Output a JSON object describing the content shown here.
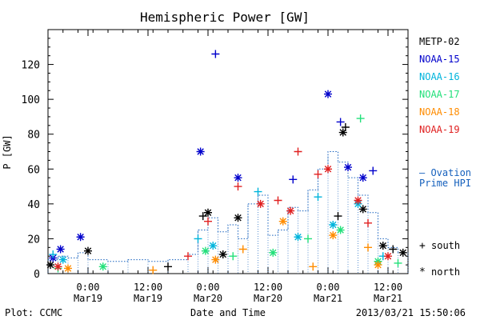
{
  "chart_data": {
    "type": "scatter",
    "title": "Hemispheric Power [GW]",
    "ylabel": "P [GW]",
    "xlabel": "Date and Time",
    "ylim": [
      0,
      140
    ],
    "yticks": [
      0,
      20,
      40,
      60,
      80,
      100,
      120
    ],
    "xlim": [
      "2013-03-18T16:00",
      "2013-03-21T16:00"
    ],
    "xticks": [
      {
        "t": "2013-03-19T00:00",
        "label_time": "0:00",
        "label_date": "Mar19"
      },
      {
        "t": "2013-03-19T12:00",
        "label_time": "12:00",
        "label_date": "Mar19"
      },
      {
        "t": "2013-03-20T00:00",
        "label_time": "0:00",
        "label_date": "Mar20"
      },
      {
        "t": "2013-03-20T12:00",
        "label_time": "12:00",
        "label_date": "Mar20"
      },
      {
        "t": "2013-03-21T00:00",
        "label_time": "0:00",
        "label_date": "Mar21"
      },
      {
        "t": "2013-03-21T12:00",
        "label_time": "12:00",
        "label_date": "Mar21"
      }
    ],
    "grid": false,
    "legend_position": "right",
    "footer_left": "Plot: CCMC",
    "footer_right": "2013/03/21 15:50:06",
    "marker_legend": {
      "plus": "south",
      "star": "north"
    },
    "series": [
      {
        "name": "METP-02",
        "color": "#000000",
        "points": [
          {
            "t": "2013-03-18T16:30",
            "v": 5,
            "m": "star"
          },
          {
            "t": "2013-03-19T00:00",
            "v": 13,
            "m": "star"
          },
          {
            "t": "2013-03-19T16:00",
            "v": 4,
            "m": "plus"
          },
          {
            "t": "2013-03-19T23:00",
            "v": 33,
            "m": "plus"
          },
          {
            "t": "2013-03-20T00:00",
            "v": 35,
            "m": "star"
          },
          {
            "t": "2013-03-20T06:00",
            "v": 32,
            "m": "star"
          },
          {
            "t": "2013-03-20T03:00",
            "v": 11,
            "m": "star"
          },
          {
            "t": "2013-03-21T02:00",
            "v": 33,
            "m": "plus"
          },
          {
            "t": "2013-03-21T03:00",
            "v": 81,
            "m": "star"
          },
          {
            "t": "2013-03-21T03:30",
            "v": 84,
            "m": "plus"
          },
          {
            "t": "2013-03-21T07:00",
            "v": 37,
            "m": "star"
          },
          {
            "t": "2013-03-21T11:00",
            "v": 16,
            "m": "star"
          },
          {
            "t": "2013-03-21T13:00",
            "v": 14,
            "m": "plus"
          },
          {
            "t": "2013-03-21T15:00",
            "v": 12,
            "m": "star"
          }
        ]
      },
      {
        "name": "NOAA-15",
        "color": "#0000cc",
        "points": [
          {
            "t": "2013-03-18T17:00",
            "v": 9,
            "m": "star"
          },
          {
            "t": "2013-03-18T18:30",
            "v": 14,
            "m": "star"
          },
          {
            "t": "2013-03-18T22:30",
            "v": 21,
            "m": "star"
          },
          {
            "t": "2013-03-19T22:30",
            "v": 70,
            "m": "star"
          },
          {
            "t": "2013-03-20T01:30",
            "v": 126,
            "m": "plus"
          },
          {
            "t": "2013-03-20T06:00",
            "v": 55,
            "m": "star"
          },
          {
            "t": "2013-03-20T17:00",
            "v": 54,
            "m": "plus"
          },
          {
            "t": "2013-03-21T00:00",
            "v": 103,
            "m": "star"
          },
          {
            "t": "2013-03-21T02:30",
            "v": 87,
            "m": "plus"
          },
          {
            "t": "2013-03-21T04:00",
            "v": 61,
            "m": "star"
          },
          {
            "t": "2013-03-21T07:00",
            "v": 55,
            "m": "star"
          },
          {
            "t": "2013-03-21T09:00",
            "v": 59,
            "m": "plus"
          }
        ]
      },
      {
        "name": "NOAA-16",
        "color": "#00b4dc",
        "points": [
          {
            "t": "2013-03-18T17:00",
            "v": 11,
            "m": "plus"
          },
          {
            "t": "2013-03-18T19:00",
            "v": 8,
            "m": "star"
          },
          {
            "t": "2013-03-19T22:00",
            "v": 20,
            "m": "plus"
          },
          {
            "t": "2013-03-20T01:00",
            "v": 16,
            "m": "star"
          },
          {
            "t": "2013-03-20T10:00",
            "v": 47,
            "m": "plus"
          },
          {
            "t": "2013-03-20T18:00",
            "v": 21,
            "m": "star"
          },
          {
            "t": "2013-03-20T22:00",
            "v": 44,
            "m": "plus"
          },
          {
            "t": "2013-03-21T01:00",
            "v": 28,
            "m": "star"
          },
          {
            "t": "2013-03-21T06:00",
            "v": 40,
            "m": "star"
          },
          {
            "t": "2013-03-21T11:00",
            "v": 10,
            "m": "plus"
          }
        ]
      },
      {
        "name": "NOAA-17",
        "color": "#22e07a",
        "points": [
          {
            "t": "2013-03-18T18:00",
            "v": 3,
            "m": "plus"
          },
          {
            "t": "2013-03-19T03:00",
            "v": 4,
            "m": "star"
          },
          {
            "t": "2013-03-19T23:30",
            "v": 13,
            "m": "star"
          },
          {
            "t": "2013-03-20T05:00",
            "v": 10,
            "m": "plus"
          },
          {
            "t": "2013-03-20T13:00",
            "v": 12,
            "m": "star"
          },
          {
            "t": "2013-03-20T20:00",
            "v": 20,
            "m": "plus"
          },
          {
            "t": "2013-03-21T02:30",
            "v": 25,
            "m": "star"
          },
          {
            "t": "2013-03-21T06:30",
            "v": 89,
            "m": "plus"
          },
          {
            "t": "2013-03-21T10:00",
            "v": 7,
            "m": "star"
          },
          {
            "t": "2013-03-21T14:00",
            "v": 6,
            "m": "plus"
          }
        ]
      },
      {
        "name": "NOAA-18",
        "color": "#ff8c00",
        "points": [
          {
            "t": "2013-03-18T20:00",
            "v": 3,
            "m": "star"
          },
          {
            "t": "2013-03-19T13:00",
            "v": 2,
            "m": "plus"
          },
          {
            "t": "2013-03-20T01:30",
            "v": 8,
            "m": "star"
          },
          {
            "t": "2013-03-20T07:00",
            "v": 14,
            "m": "plus"
          },
          {
            "t": "2013-03-20T15:00",
            "v": 30,
            "m": "star"
          },
          {
            "t": "2013-03-20T21:00",
            "v": 4,
            "m": "plus"
          },
          {
            "t": "2013-03-21T01:00",
            "v": 22,
            "m": "star"
          },
          {
            "t": "2013-03-21T08:00",
            "v": 15,
            "m": "plus"
          },
          {
            "t": "2013-03-21T10:00",
            "v": 5,
            "m": "star"
          }
        ]
      },
      {
        "name": "NOAA-19",
        "color": "#e02020",
        "points": [
          {
            "t": "2013-03-18T18:00",
            "v": 4,
            "m": "star"
          },
          {
            "t": "2013-03-19T20:00",
            "v": 10,
            "m": "plus"
          },
          {
            "t": "2013-03-20T00:00",
            "v": 30,
            "m": "plus"
          },
          {
            "t": "2013-03-20T06:00",
            "v": 50,
            "m": "plus"
          },
          {
            "t": "2013-03-20T10:30",
            "v": 40,
            "m": "star"
          },
          {
            "t": "2013-03-20T14:00",
            "v": 42,
            "m": "plus"
          },
          {
            "t": "2013-03-20T16:30",
            "v": 36,
            "m": "star"
          },
          {
            "t": "2013-03-20T18:00",
            "v": 70,
            "m": "plus"
          },
          {
            "t": "2013-03-20T22:00",
            "v": 57,
            "m": "plus"
          },
          {
            "t": "2013-03-21T00:00",
            "v": 60,
            "m": "star"
          },
          {
            "t": "2013-03-21T06:00",
            "v": 42,
            "m": "star"
          },
          {
            "t": "2013-03-21T08:00",
            "v": 29,
            "m": "plus"
          },
          {
            "t": "2013-03-21T12:00",
            "v": 10,
            "m": "star"
          }
        ]
      }
    ],
    "ovation": {
      "name_line1": "— Ovation",
      "name_line2": "Prime HPI",
      "color": "#1560bd",
      "steps": [
        {
          "t": "2013-03-18T16:00",
          "v": 8
        },
        {
          "t": "2013-03-18T18:00",
          "v": 10
        },
        {
          "t": "2013-03-18T20:00",
          "v": 9
        },
        {
          "t": "2013-03-18T22:00",
          "v": 12
        },
        {
          "t": "2013-03-19T00:00",
          "v": 8
        },
        {
          "t": "2013-03-19T04:00",
          "v": 7
        },
        {
          "t": "2013-03-19T08:00",
          "v": 8
        },
        {
          "t": "2013-03-19T12:00",
          "v": 7
        },
        {
          "t": "2013-03-19T16:00",
          "v": 8
        },
        {
          "t": "2013-03-19T20:00",
          "v": 11
        },
        {
          "t": "2013-03-19T22:00",
          "v": 25
        },
        {
          "t": "2013-03-20T00:00",
          "v": 32
        },
        {
          "t": "2013-03-20T02:00",
          "v": 24
        },
        {
          "t": "2013-03-20T04:00",
          "v": 28
        },
        {
          "t": "2013-03-20T06:00",
          "v": 20
        },
        {
          "t": "2013-03-20T08:00",
          "v": 40
        },
        {
          "t": "2013-03-20T10:00",
          "v": 45
        },
        {
          "t": "2013-03-20T12:00",
          "v": 22
        },
        {
          "t": "2013-03-20T14:00",
          "v": 25
        },
        {
          "t": "2013-03-20T16:00",
          "v": 38
        },
        {
          "t": "2013-03-20T18:00",
          "v": 36
        },
        {
          "t": "2013-03-20T20:00",
          "v": 48
        },
        {
          "t": "2013-03-20T22:00",
          "v": 60
        },
        {
          "t": "2013-03-21T00:00",
          "v": 70
        },
        {
          "t": "2013-03-21T02:00",
          "v": 64
        },
        {
          "t": "2013-03-21T04:00",
          "v": 55
        },
        {
          "t": "2013-03-21T06:00",
          "v": 45
        },
        {
          "t": "2013-03-21T08:00",
          "v": 35
        },
        {
          "t": "2013-03-21T10:00",
          "v": 20
        },
        {
          "t": "2013-03-21T12:00",
          "v": 15
        },
        {
          "t": "2013-03-21T14:00",
          "v": 12
        },
        {
          "t": "2013-03-21T16:00",
          "v": 12
        }
      ]
    }
  }
}
